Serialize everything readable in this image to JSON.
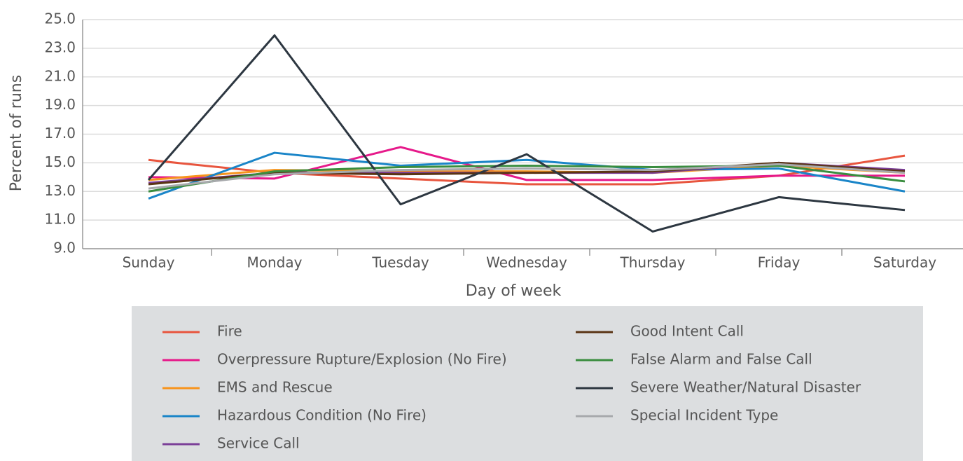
{
  "chart_data": {
    "type": "line",
    "ylabel": "Percent of runs",
    "xlabel": "Day of week",
    "categories": [
      "Sunday",
      "Monday",
      "Tuesday",
      "Wednesday",
      "Thursday",
      "Friday",
      "Saturday"
    ],
    "ylim": [
      9,
      25
    ],
    "yticks": [
      {
        "value": 9,
        "label": "9.0"
      },
      {
        "value": 11,
        "label": "11.0"
      },
      {
        "value": 13,
        "label": "13.0"
      },
      {
        "value": 15,
        "label": "15.0"
      },
      {
        "value": 17,
        "label": "17.0"
      },
      {
        "value": 19,
        "label": "19.0"
      },
      {
        "value": 21,
        "label": "21.0"
      },
      {
        "value": 23,
        "label": "23.0"
      },
      {
        "value": 25,
        "label": "25.0"
      }
    ],
    "grid": true,
    "series": [
      {
        "name": "Fire",
        "color": "#e8553e",
        "values": [
          15.2,
          14.3,
          13.9,
          13.5,
          13.5,
          14.1,
          15.5
        ]
      },
      {
        "name": "Overpressure Rupture/Explosion (No Fire)",
        "color": "#e6198a",
        "values": [
          14.0,
          13.9,
          16.1,
          13.8,
          13.8,
          14.1,
          14.1
        ]
      },
      {
        "name": "EMS and Rescue",
        "color": "#f7941d",
        "values": [
          13.8,
          14.5,
          14.4,
          14.4,
          14.3,
          14.8,
          14.3
        ]
      },
      {
        "name": "Hazardous Condition (No Fire)",
        "color": "#1a85c8",
        "values": [
          12.5,
          15.7,
          14.8,
          15.2,
          14.5,
          14.6,
          13.0
        ]
      },
      {
        "name": "Service Call",
        "color": "#7b3f98",
        "values": [
          13.6,
          14.3,
          14.3,
          14.3,
          14.3,
          15.0,
          14.5
        ]
      },
      {
        "name": "Good Intent Call",
        "color": "#5a3414",
        "values": [
          13.5,
          14.3,
          14.2,
          14.3,
          14.4,
          15.0,
          14.4
        ]
      },
      {
        "name": "False Alarm and False Call",
        "color": "#3a8d3f",
        "values": [
          13.0,
          14.4,
          14.7,
          14.8,
          14.7,
          14.8,
          13.7
        ]
      },
      {
        "name": "Severe Weather/Natural Disaster",
        "color": "#2d3741",
        "values": [
          13.8,
          23.9,
          12.1,
          15.6,
          10.2,
          12.6,
          11.7
        ]
      },
      {
        "name": "Special Incident Type",
        "color": "#a7a9ac",
        "values": [
          13.2,
          14.2,
          14.5,
          14.6,
          14.5,
          14.9,
          14.3
        ]
      }
    ]
  }
}
